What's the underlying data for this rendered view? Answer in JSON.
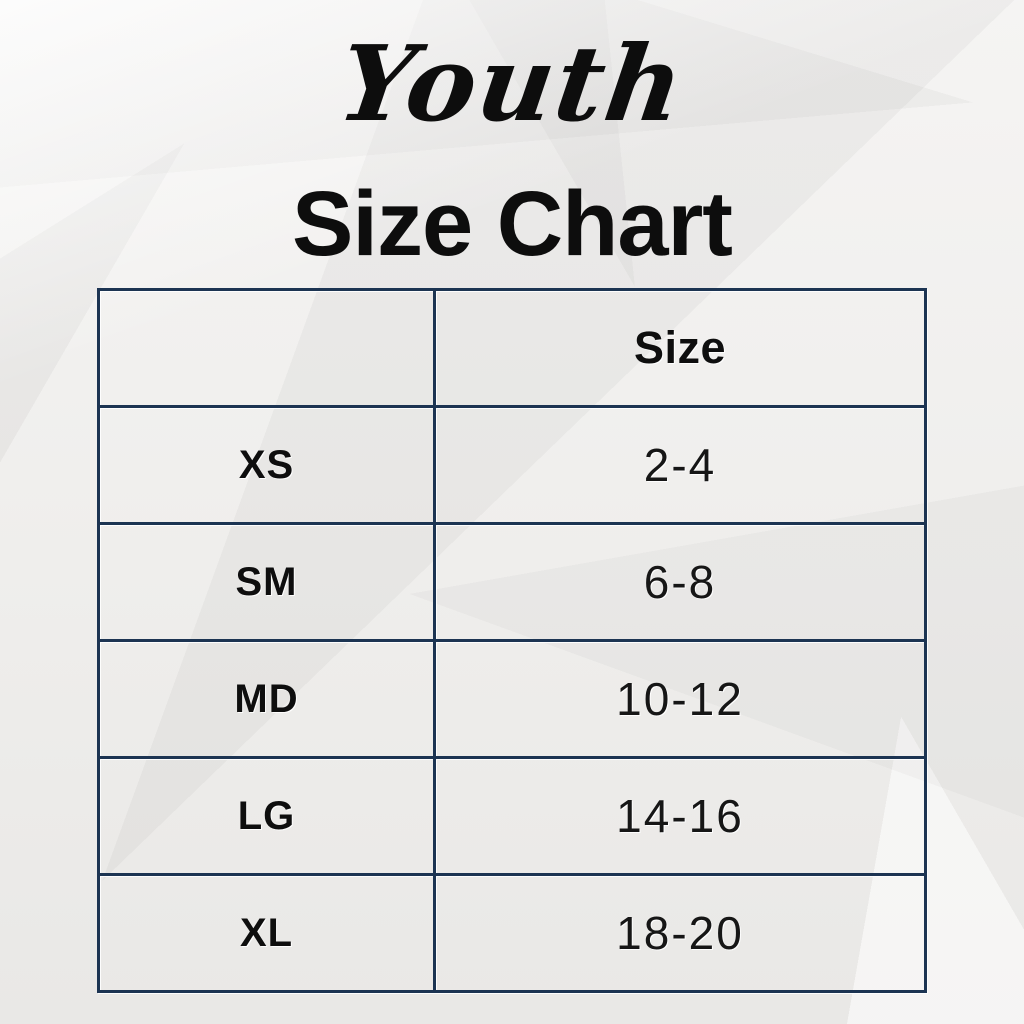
{
  "header": {
    "script_title": "Youth",
    "main_title": "Size Chart"
  },
  "table": {
    "header": [
      "",
      "Size"
    ],
    "rows": [
      {
        "label": "XS",
        "size": "2-4"
      },
      {
        "label": "SM",
        "size": "6-8"
      },
      {
        "label": "MD",
        "size": "10-12"
      },
      {
        "label": "LG",
        "size": "14-16"
      },
      {
        "label": "XL",
        "size": "18-20"
      }
    ]
  },
  "colors": {
    "text": "#0e0e0e",
    "table_border": "#1c3452",
    "paper_background": "#f0efed"
  },
  "chart_data": {
    "type": "table",
    "title": "Youth Size Chart",
    "columns": [
      "",
      "Size"
    ],
    "rows": [
      [
        "XS",
        "2-4"
      ],
      [
        "SM",
        "6-8"
      ],
      [
        "MD",
        "10-12"
      ],
      [
        "LG",
        "14-16"
      ],
      [
        "XL",
        "18-20"
      ]
    ]
  }
}
